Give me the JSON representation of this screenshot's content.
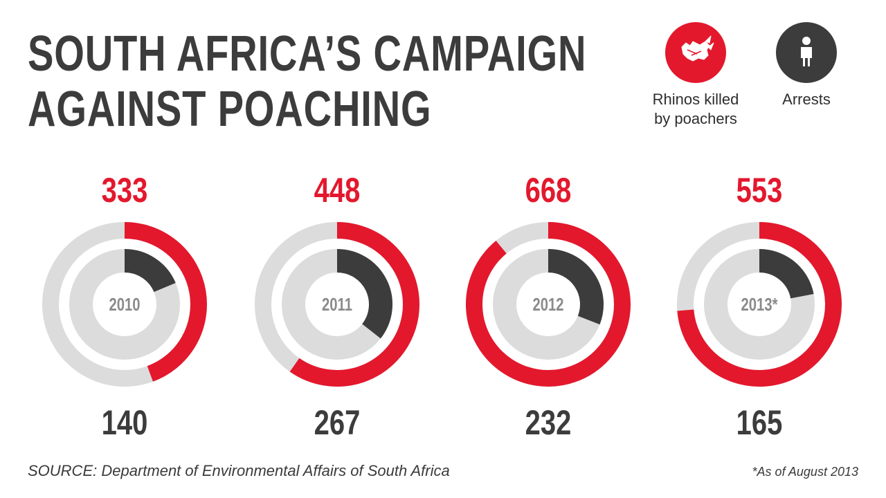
{
  "title_line1": "SOUTH AFRICA’S CAMPAIGN",
  "title_line2": "AGAINST POACHING",
  "legend": {
    "rhinos_line1": "Rhinos killed",
    "rhinos_line2": "by poachers",
    "arrests": "Arrests",
    "rhino_color": "#e3182d",
    "arrest_color": "#3c3c3c"
  },
  "chart_data": {
    "type": "radial-bar",
    "series": [
      {
        "name": "Rhinos killed by poachers",
        "color": "#e3182d",
        "values": [
          333,
          448,
          668,
          553
        ]
      },
      {
        "name": "Arrests",
        "color": "#3c3c3c",
        "values": [
          140,
          267,
          232,
          165
        ]
      }
    ],
    "categories": [
      "2010",
      "2011",
      "2012",
      "2013*"
    ],
    "max": 750,
    "track_color": "#dcdcdc"
  },
  "source": "SOURCE: Department of Environmental Affairs of South Africa",
  "note": "*As of August 2013"
}
